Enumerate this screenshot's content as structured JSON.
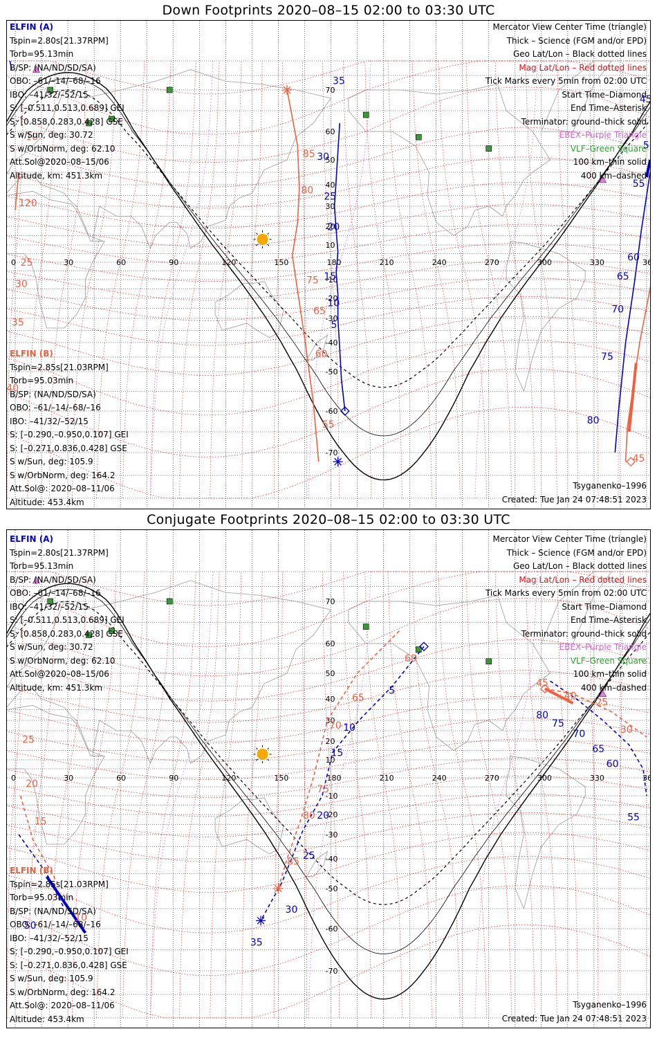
{
  "colors": {
    "probe_a": "#0000cc",
    "probe_b": "#f06040",
    "mag_grid": "#e01010",
    "geo_grid": "#000000",
    "coast": "#9a9a9a",
    "vlf": "#3a9a3a",
    "ebex": "#cc66cc",
    "sun": "#f5a800"
  },
  "panels": [
    {
      "title": "Down Footprints 2020–08–15 02:00 to 03:30 UTC",
      "probe_a": {
        "name": "ELFIN (A)",
        "lines": [
          "Tspin=2.80s[21.37RPM]",
          "Torb=95.13min",
          "B/SP: (NA/ND/SD/SA)",
          "OBO: –61/–14/–68/–16",
          "IBO: –41/32/–52/15",
          "S: [–0.511,0.513,0.689] GEI",
          "S: [0.858,0.283,0.428] GSE",
          "S w/Sun, deg: 30.72",
          "S w/OrbNorm, deg: 62.10",
          "Att.Sol@2020–08–15/06",
          "Altitude, km: 451.3km"
        ]
      },
      "probe_b": {
        "name": "ELFIN (B)",
        "lines": [
          "Tspin=2.85s[21.03RPM]",
          "Torb=95.03min",
          "B/SP: (NA/ND/SD/SA)",
          "OBO: –61/–14/–68/–16",
          "IBO: –41/32/–52/15",
          "S: [–0.290,–0.950,0.107] GEI",
          "S: [–0.271,0.836,0.428] GSE",
          "S w/Sun, deg: 105.9",
          "S w/OrbNorm, deg: 164.2",
          "Att.Sol@: 2020–08–11/06",
          "Altitude: 453.4km"
        ]
      },
      "legend": {
        "view": "Mercator View Center Time (triangle)",
        "thick": "Thick – Science (FGM and/or EPD)",
        "geo": "Geo Lat/Lon – Black dotted lines",
        "mag": "Mag Lat/Lon – Red dotted lines",
        "ticks": "Tick Marks every 5min from 02:00 UTC",
        "start": "Start Time–Diamond",
        "end": "End Time–Asterisk",
        "terminator": "Terminator: ground–thick solid",
        "ebex": "EBEX–Purple Triangle",
        "vlf": "VLF–Green Square",
        "km100": "100 km–thin solid",
        "km400": "400 km–dashed"
      },
      "model": "Tsyganenko–1996",
      "created": "Created: Tue Jan 24 07:48:51 2023",
      "track_a": [
        [
          185,
          62
        ],
        [
          183,
          42
        ],
        [
          182,
          30
        ],
        [
          183,
          18
        ],
        [
          184,
          6
        ],
        [
          183,
          -6
        ],
        [
          184,
          -18
        ],
        [
          184,
          -30
        ],
        [
          185,
          -42
        ],
        [
          186,
          -52
        ],
        [
          188,
          -60
        ]
      ],
      "track_b": [
        [
          155,
          70
        ],
        [
          161,
          55
        ],
        [
          162,
          38
        ],
        [
          161,
          22
        ],
        [
          158,
          4
        ],
        [
          161,
          -16
        ],
        [
          165,
          -38
        ],
        [
          170,
          -58
        ],
        [
          173,
          -72
        ]
      ],
      "track_a2": [
        [
          362,
          45
        ],
        [
          357,
          18
        ],
        [
          353,
          -12
        ],
        [
          348,
          -40
        ],
        [
          344,
          -60
        ],
        [
          342,
          -70
        ]
      ],
      "track_a2_thick": [
        [
          362,
          50
        ],
        [
          360,
          43
        ]
      ],
      "track_b2": [
        [
          368,
          18
        ],
        [
          363,
          -10
        ],
        [
          356,
          -40
        ],
        [
          349,
          -64
        ],
        [
          348,
          -72
        ]
      ],
      "track_b2_thick": [
        [
          354,
          -47
        ],
        [
          350,
          -65
        ]
      ],
      "track_a3": [
        [
          -2,
          77
        ],
        [
          -3,
          80
        ]
      ],
      "track_b3": [
        [
          2,
          45
        ],
        [
          0,
          28
        ]
      ],
      "tick_labels_a": [
        {
          "t": "35",
          "lon": 181,
          "lat": 72
        },
        {
          "t": "30",
          "lon": 172,
          "lat": 50
        },
        {
          "t": "25",
          "lon": 176,
          "lat": 33
        },
        {
          "t": "20",
          "lon": 178,
          "lat": 18
        },
        {
          "t": "15",
          "lon": 176,
          "lat": -10
        },
        {
          "t": "10",
          "lon": 178,
          "lat": -24
        },
        {
          "t": "5",
          "lon": 180,
          "lat": -34
        },
        {
          "t": "45",
          "lon": 356,
          "lat": 67
        },
        {
          "t": "50",
          "lon": 358,
          "lat": 54
        },
        {
          "t": "55",
          "lon": 352,
          "lat": 39
        },
        {
          "t": "60",
          "lon": 349,
          "lat": 1
        },
        {
          "t": "65",
          "lon": 343,
          "lat": -10
        },
        {
          "t": "70",
          "lon": 340,
          "lat": -27
        },
        {
          "t": "75",
          "lon": 334,
          "lat": -46
        },
        {
          "t": "80",
          "lon": 326,
          "lat": -63
        }
      ],
      "tick_labels_b": [
        {
          "t": "85",
          "lon": 164,
          "lat": 51
        },
        {
          "t": "80",
          "lon": 163,
          "lat": 36
        },
        {
          "t": "75",
          "lon": 166,
          "lat": -12
        },
        {
          "t": "65",
          "lon": 170,
          "lat": -28
        },
        {
          "t": "60",
          "lon": 171,
          "lat": -45
        },
        {
          "t": "55",
          "lon": 175,
          "lat": -64
        },
        {
          "t": "45",
          "lon": 352,
          "lat": -72
        },
        {
          "t": "10",
          "lon": 6,
          "lat": 57
        },
        {
          "t": "120",
          "lon": 2,
          "lat": 30
        },
        {
          "t": "25",
          "lon": 3,
          "lat": -2
        },
        {
          "t": "30",
          "lon": 0,
          "lat": -14
        },
        {
          "t": "35",
          "lon": -2,
          "lat": -33
        },
        {
          "t": "40",
          "lon": -5,
          "lat": -55
        }
      ],
      "start_a": [
        188,
        -60
      ],
      "end_a": [
        184,
        -72
      ],
      "start_b": [
        351,
        -72
      ],
      "end_b": [
        155,
        70
      ],
      "sun": [
        141,
        13
      ]
    },
    {
      "title": "Conjugate Footprints 2020–08–15 02:00 to 03:30 UTC",
      "probe_a": {
        "name": "ELFIN (A)",
        "lines": [
          "Tspin=2.80s[21.37RPM]",
          "Torb=95.13min",
          "B/SP: (NA/ND/SD/SA)",
          "OBO: –61/–14/–68/–16",
          "IBO: –41/32/–52/15",
          "S: [–0.511,0.513,0.689] GEI",
          "S: [0.858,0.283,0.428] GSE",
          "S w/Sun, deg: 30.72",
          "S w/OrbNorm, deg: 62.10",
          "Att.Sol@2020–08–15/06",
          "Altitude, km: 451.3km"
        ]
      },
      "probe_b": {
        "name": "ELFIN (B)",
        "lines": [
          "Tspin=2.85s[21.03RPM]",
          "Torb=95.03min",
          "B/SP: (NA/ND/SD/SA)",
          "OBO: –61/–14/–68/–16",
          "IBO: –41/32/–52/15",
          "S: [–0.290,–0.950,0.107] GEI",
          "S: [–0.271,0.836,0.428] GSE",
          "S w/Sun, deg: 105.9",
          "S w/OrbNorm, deg: 164.2",
          "Att.Sol@: 2020–08–11/06",
          "Altitude: 453.4km"
        ]
      },
      "legend": {
        "view": "Mercator View Center Time (triangle)",
        "thick": "Thick – Science (FGM and/or EPD)",
        "geo": "Geo Lat/Lon – Black dotted lines",
        "mag": "Mag Lat/Lon – Red dotted lines",
        "ticks": "Tick Marks every 5min from 02:00 UTC",
        "start": "Start Time–Diamond",
        "end": "End Time–Asterisk",
        "terminator": "Terminator: ground–thick solid",
        "ebex": "EBEX–Purple Triangle",
        "vlf": "VLF–Green Square",
        "km100": "100 km–thin solid",
        "km400": "400 km–dashed"
      },
      "model": "Tsyganenko–1996",
      "created": "Created: Tue Jan 24 07:48:51 2023",
      "track_a": [
        [
          233,
          59
        ],
        [
          215,
          45
        ],
        [
          196,
          30
        ],
        [
          181,
          14
        ],
        [
          175,
          -10
        ],
        [
          164,
          -28
        ],
        [
          152,
          -48
        ],
        [
          140,
          -58
        ]
      ],
      "track_b": [
        [
          219,
          63
        ],
        [
          195,
          50
        ],
        [
          178,
          30
        ],
        [
          170,
          0
        ],
        [
          163,
          -22
        ],
        [
          155,
          -40
        ],
        [
          150,
          -50
        ]
      ],
      "track_a2": [
        [
          305,
          47
        ],
        [
          320,
          40
        ],
        [
          335,
          30
        ],
        [
          350,
          18
        ],
        [
          358,
          5
        ],
        [
          360,
          -10
        ]
      ],
      "track_b2": [
        [
          302,
          44
        ],
        [
          318,
          42
        ],
        [
          340,
          34
        ],
        [
          360,
          22
        ]
      ],
      "track_a2_thick": [],
      "track_b2_thick": [
        [
          302,
          44
        ],
        [
          318,
          38
        ]
      ],
      "track_a3": [
        [
          2,
          -30
        ],
        [
          18,
          -45
        ],
        [
          28,
          -55
        ]
      ],
      "track_a3_thick": [
        [
          18,
          -46
        ],
        [
          40,
          -61
        ]
      ],
      "track_b3": [
        [
          3,
          -10
        ],
        [
          10,
          -32
        ],
        [
          24,
          -48
        ]
      ],
      "tick_labels_a": [
        {
          "t": "5",
          "lon": 213,
          "lat": 42
        },
        {
          "t": "10",
          "lon": 187,
          "lat": 25
        },
        {
          "t": "15",
          "lon": 180,
          "lat": 12
        },
        {
          "t": "20",
          "lon": 172,
          "lat": -22
        },
        {
          "t": "25",
          "lon": 164,
          "lat": -40
        },
        {
          "t": "30",
          "lon": 154,
          "lat": -56
        },
        {
          "t": "35",
          "lon": 134,
          "lat": -64
        },
        {
          "t": "80",
          "lon": 297,
          "lat": 31
        },
        {
          "t": "75",
          "lon": 306,
          "lat": 27
        },
        {
          "t": "70",
          "lon": 318,
          "lat": 22
        },
        {
          "t": "65",
          "lon": 329,
          "lat": 14
        },
        {
          "t": "60",
          "lon": 337,
          "lat": 6
        },
        {
          "t": "55",
          "lon": 349,
          "lat": -23
        },
        {
          "t": "50",
          "lon": 5,
          "lat": -60
        }
      ],
      "tick_labels_b": [
        {
          "t": "60",
          "lon": 222,
          "lat": 54
        },
        {
          "t": "65",
          "lon": 192,
          "lat": 39
        },
        {
          "t": "70",
          "lon": 179,
          "lat": 26
        },
        {
          "t": "75",
          "lon": 172,
          "lat": -8
        },
        {
          "t": "80",
          "lon": 164,
          "lat": -22
        },
        {
          "t": "85",
          "lon": 155,
          "lat": -42
        },
        {
          "t": "45",
          "lon": 297,
          "lat": 45
        },
        {
          "t": "40",
          "lon": 313,
          "lat": 40
        },
        {
          "t": "25",
          "lon": 331,
          "lat": 37
        },
        {
          "t": "30",
          "lon": 345,
          "lat": 24
        },
        {
          "t": "25",
          "lon": 4,
          "lat": 19
        },
        {
          "t": "20",
          "lon": 6,
          "lat": -5
        },
        {
          "t": "15",
          "lon": 11,
          "lat": -25
        },
        {
          "t": "10",
          "lon": 34,
          "lat": -58
        }
      ],
      "start_a": [
        233,
        59
      ],
      "end_a": [
        140,
        -58
      ],
      "start_b": [
        302,
        44
      ],
      "end_b": [
        150,
        -50
      ],
      "sun": [
        141,
        13
      ]
    }
  ]
}
